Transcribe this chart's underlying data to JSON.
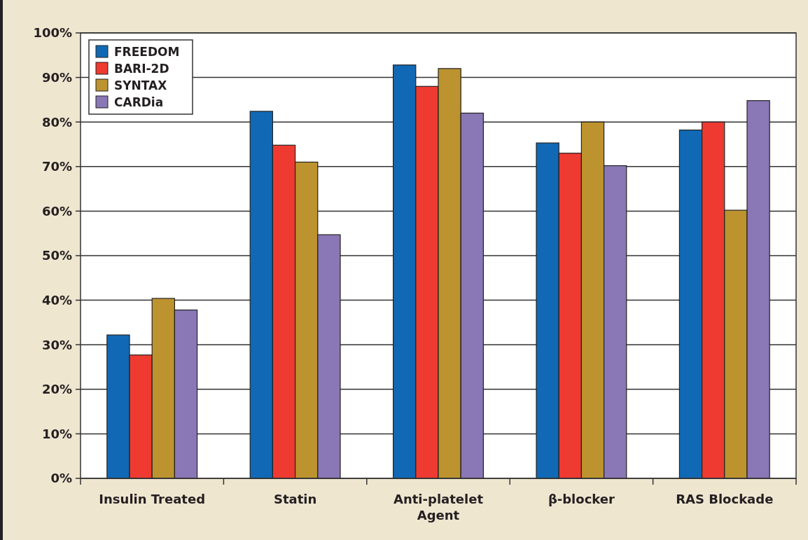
{
  "chart_data": {
    "type": "bar",
    "categories": [
      "Insulin Treated",
      "Statin",
      "Anti-platelet Agent",
      "β-blocker",
      "RAS Blockade"
    ],
    "series": [
      {
        "name": "FREEDOM",
        "color": "#1169b5",
        "values": [
          32.2,
          82.4,
          92.8,
          75.3,
          78.2
        ]
      },
      {
        "name": "BARI-2D",
        "color": "#ee3a31",
        "values": [
          27.7,
          74.8,
          88,
          73,
          80
        ]
      },
      {
        "name": "SYNTAX",
        "color": "#bc932f",
        "values": [
          40.4,
          71,
          92,
          80,
          60.2
        ]
      },
      {
        "name": "CARDia",
        "color": "#8a77b5",
        "values": [
          37.8,
          54.7,
          82,
          70.2,
          84.8
        ]
      }
    ],
    "ylim": [
      0,
      100
    ],
    "yticks": [
      {
        "value": 0,
        "label": "0%"
      },
      {
        "value": 10,
        "label": "10%"
      },
      {
        "value": 20,
        "label": "20%"
      },
      {
        "value": 30,
        "label": "30%"
      },
      {
        "value": 40,
        "label": "40%"
      },
      {
        "value": 50,
        "label": "50%"
      },
      {
        "value": 60,
        "label": "60%"
      },
      {
        "value": 70,
        "label": "70%"
      },
      {
        "value": 80,
        "label": "80%"
      },
      {
        "value": 90,
        "label": "90%"
      },
      {
        "value": 100,
        "label": "100%"
      }
    ],
    "grid": "y",
    "legend": "top left"
  }
}
